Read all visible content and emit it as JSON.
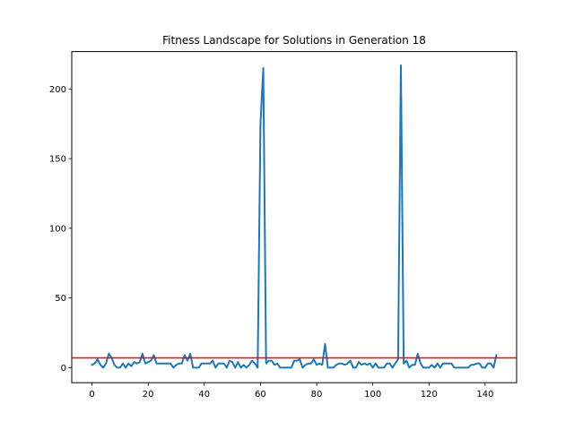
{
  "chart_data": {
    "type": "line",
    "title": "Fitness Landscape for Solutions in Generation 18",
    "xlabel": "",
    "ylabel": "",
    "xlim": [
      -7.2,
      151.2
    ],
    "ylim": [
      -10.8,
      226.8
    ],
    "xticks": [
      0,
      20,
      40,
      60,
      80,
      100,
      120,
      140
    ],
    "yticks": [
      0,
      50,
      100,
      150,
      200
    ],
    "grid": false,
    "series": [
      {
        "color": "#1f77b4",
        "x": [
          0,
          1,
          2,
          3,
          4,
          5,
          6,
          7,
          8,
          9,
          10,
          11,
          12,
          13,
          14,
          15,
          16,
          17,
          18,
          19,
          20,
          21,
          22,
          23,
          24,
          25,
          26,
          27,
          28,
          29,
          30,
          31,
          32,
          33,
          34,
          35,
          36,
          37,
          38,
          39,
          40,
          41,
          42,
          43,
          44,
          45,
          46,
          47,
          48,
          49,
          50,
          51,
          52,
          53,
          54,
          55,
          56,
          57,
          58,
          59,
          60,
          61,
          62,
          63,
          64,
          65,
          66,
          67,
          68,
          69,
          70,
          71,
          72,
          73,
          74,
          75,
          76,
          77,
          78,
          79,
          80,
          81,
          82,
          83,
          84,
          85,
          86,
          87,
          88,
          89,
          90,
          91,
          92,
          93,
          94,
          95,
          96,
          97,
          98,
          99,
          100,
          101,
          102,
          103,
          104,
          105,
          106,
          107,
          108,
          109,
          110,
          111,
          112,
          113,
          114,
          115,
          116,
          117,
          118,
          119,
          120,
          121,
          122,
          123,
          124,
          125,
          126,
          127,
          128,
          129,
          130,
          131,
          132,
          133,
          134,
          135,
          136,
          137,
          138,
          139,
          140,
          141,
          142,
          143,
          144
        ],
        "y": [
          2,
          3,
          6,
          2,
          0,
          3,
          10,
          7,
          2,
          0,
          0,
          3,
          0,
          3,
          1,
          4,
          3,
          4,
          10,
          3,
          4,
          5,
          9,
          3,
          3,
          3,
          3,
          3,
          3,
          0,
          2,
          3,
          3,
          9,
          5,
          10,
          0,
          0,
          0,
          3,
          3,
          3,
          3,
          5,
          0,
          3,
          3,
          3,
          0,
          5,
          4,
          0,
          4,
          0,
          2,
          0,
          2,
          5,
          3,
          0,
          175,
          215,
          3,
          5,
          5,
          2,
          3,
          0,
          0,
          0,
          0,
          0,
          5,
          5,
          6,
          0,
          2,
          3,
          3,
          6,
          2,
          3,
          2,
          17,
          0,
          0,
          0,
          2,
          3,
          3,
          2,
          3,
          5,
          0,
          0,
          4,
          2,
          3,
          2,
          3,
          0,
          3,
          0,
          0,
          0,
          3,
          3,
          0,
          3,
          6,
          217,
          3,
          5,
          0,
          2,
          2,
          10,
          3,
          0,
          0,
          0,
          2,
          0,
          3,
          0,
          3,
          3,
          3,
          3,
          0,
          0,
          0,
          0,
          0,
          0,
          2,
          2,
          3,
          3,
          0,
          0,
          3,
          3,
          0,
          9
        ]
      }
    ],
    "hlines": [
      {
        "y": 7,
        "color": "#ff0000"
      }
    ]
  }
}
